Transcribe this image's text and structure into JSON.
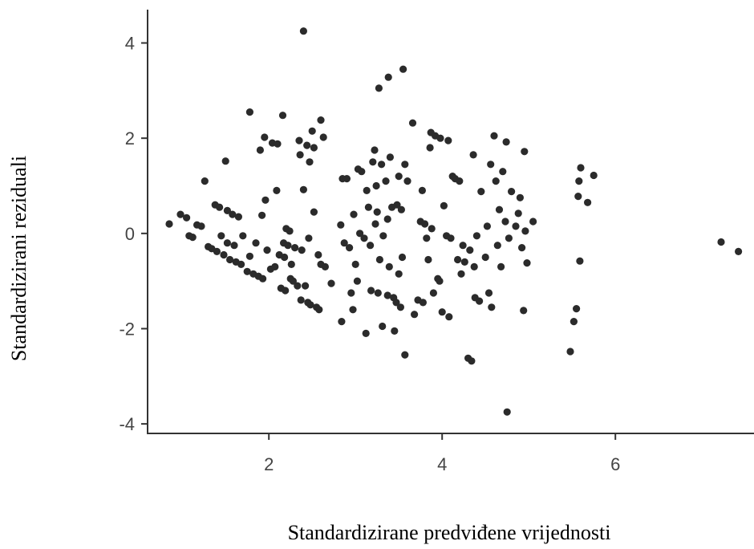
{
  "chart_data": {
    "type": "scatter",
    "xlabel": "Standardizirane predviđene vrijednosti",
    "ylabel": "Standardizirani reziduali",
    "xlim": [
      0.6,
      7.6
    ],
    "ylim": [
      -4.2,
      4.7
    ],
    "xticks": [
      2,
      4,
      6
    ],
    "yticks": [
      -4,
      -2,
      0,
      2,
      4
    ],
    "grid": false,
    "point_color": "#2b2b2b",
    "points": [
      [
        0.85,
        0.2
      ],
      [
        0.98,
        0.4
      ],
      [
        1.05,
        0.33
      ],
      [
        1.08,
        -0.05
      ],
      [
        1.12,
        -0.08
      ],
      [
        1.17,
        0.18
      ],
      [
        1.22,
        0.15
      ],
      [
        1.26,
        1.1
      ],
      [
        1.3,
        -0.28
      ],
      [
        1.34,
        -0.32
      ],
      [
        1.38,
        0.6
      ],
      [
        1.4,
        -0.38
      ],
      [
        1.43,
        0.55
      ],
      [
        1.45,
        -0.05
      ],
      [
        1.48,
        -0.45
      ],
      [
        1.5,
        1.52
      ],
      [
        1.52,
        -0.2
      ],
      [
        1.52,
        0.48
      ],
      [
        1.55,
        -0.55
      ],
      [
        1.58,
        0.4
      ],
      [
        1.6,
        -0.25
      ],
      [
        1.62,
        -0.6
      ],
      [
        1.65,
        0.35
      ],
      [
        1.68,
        -0.65
      ],
      [
        1.7,
        -0.05
      ],
      [
        1.75,
        -0.8
      ],
      [
        1.78,
        2.55
      ],
      [
        1.78,
        -0.48
      ],
      [
        1.82,
        -0.85
      ],
      [
        1.85,
        -0.2
      ],
      [
        1.88,
        -0.9
      ],
      [
        1.9,
        1.75
      ],
      [
        1.92,
        0.38
      ],
      [
        1.93,
        -0.95
      ],
      [
        1.95,
        2.02
      ],
      [
        1.96,
        0.7
      ],
      [
        1.98,
        -0.35
      ],
      [
        2.02,
        -0.75
      ],
      [
        2.04,
        1.9
      ],
      [
        2.07,
        -0.7
      ],
      [
        2.09,
        0.9
      ],
      [
        2.1,
        1.88
      ],
      [
        2.12,
        -0.45
      ],
      [
        2.14,
        -1.15
      ],
      [
        2.16,
        2.48
      ],
      [
        2.17,
        -0.2
      ],
      [
        2.18,
        -0.5
      ],
      [
        2.19,
        -1.2
      ],
      [
        2.2,
        0.1
      ],
      [
        2.22,
        -0.25
      ],
      [
        2.24,
        0.05
      ],
      [
        2.25,
        -0.95
      ],
      [
        2.26,
        -0.65
      ],
      [
        2.28,
        -1.0
      ],
      [
        2.3,
        -0.3
      ],
      [
        2.33,
        -1.1
      ],
      [
        2.35,
        1.95
      ],
      [
        2.36,
        1.65
      ],
      [
        2.37,
        -1.4
      ],
      [
        2.38,
        -0.35
      ],
      [
        2.4,
        4.25
      ],
      [
        2.4,
        0.92
      ],
      [
        2.42,
        -1.1
      ],
      [
        2.44,
        1.85
      ],
      [
        2.45,
        -1.45
      ],
      [
        2.46,
        -0.1
      ],
      [
        2.47,
        1.5
      ],
      [
        2.48,
        -1.5
      ],
      [
        2.5,
        2.15
      ],
      [
        2.52,
        1.8
      ],
      [
        2.52,
        0.45
      ],
      [
        2.55,
        -1.55
      ],
      [
        2.57,
        -0.45
      ],
      [
        2.58,
        -1.6
      ],
      [
        2.6,
        2.38
      ],
      [
        2.6,
        -0.65
      ],
      [
        2.63,
        2.02
      ],
      [
        2.65,
        -0.7
      ],
      [
        2.72,
        -1.05
      ],
      [
        2.83,
        0.18
      ],
      [
        2.84,
        -1.85
      ],
      [
        2.85,
        1.15
      ],
      [
        2.87,
        -0.2
      ],
      [
        2.9,
        1.15
      ],
      [
        2.93,
        -0.3
      ],
      [
        2.95,
        -1.25
      ],
      [
        2.97,
        -1.6
      ],
      [
        2.98,
        0.4
      ],
      [
        3.0,
        -0.65
      ],
      [
        3.02,
        -1.0
      ],
      [
        3.03,
        1.35
      ],
      [
        3.05,
        0.0
      ],
      [
        3.07,
        1.3
      ],
      [
        3.1,
        -0.1
      ],
      [
        3.12,
        -2.1
      ],
      [
        3.13,
        0.9
      ],
      [
        3.15,
        0.55
      ],
      [
        3.17,
        -0.25
      ],
      [
        3.18,
        -1.2
      ],
      [
        3.2,
        1.5
      ],
      [
        3.22,
        1.75
      ],
      [
        3.23,
        0.2
      ],
      [
        3.24,
        1.0
      ],
      [
        3.25,
        0.45
      ],
      [
        3.26,
        -1.25
      ],
      [
        3.27,
        3.05
      ],
      [
        3.28,
        -0.55
      ],
      [
        3.3,
        1.45
      ],
      [
        3.31,
        -1.95
      ],
      [
        3.32,
        -0.05
      ],
      [
        3.35,
        1.1
      ],
      [
        3.37,
        -1.3
      ],
      [
        3.37,
        0.3
      ],
      [
        3.38,
        3.28
      ],
      [
        3.39,
        -0.7
      ],
      [
        3.4,
        1.6
      ],
      [
        3.42,
        0.55
      ],
      [
        3.44,
        -1.35
      ],
      [
        3.45,
        -2.05
      ],
      [
        3.47,
        -1.45
      ],
      [
        3.48,
        0.6
      ],
      [
        3.5,
        1.2
      ],
      [
        3.5,
        -0.85
      ],
      [
        3.52,
        -1.55
      ],
      [
        3.53,
        0.5
      ],
      [
        3.54,
        -0.5
      ],
      [
        3.55,
        3.45
      ],
      [
        3.57,
        1.45
      ],
      [
        3.57,
        -2.55
      ],
      [
        3.6,
        1.1
      ],
      [
        3.66,
        2.32
      ],
      [
        3.68,
        -1.7
      ],
      [
        3.72,
        -1.4
      ],
      [
        3.75,
        0.25
      ],
      [
        3.77,
        0.9
      ],
      [
        3.78,
        -1.45
      ],
      [
        3.8,
        0.2
      ],
      [
        3.82,
        -0.1
      ],
      [
        3.84,
        -0.55
      ],
      [
        3.86,
        1.8
      ],
      [
        3.87,
        2.12
      ],
      [
        3.88,
        0.1
      ],
      [
        3.9,
        -1.25
      ],
      [
        3.92,
        2.05
      ],
      [
        3.95,
        -0.95
      ],
      [
        3.97,
        -1.0
      ],
      [
        3.98,
        2.0
      ],
      [
        4.0,
        -1.65
      ],
      [
        4.02,
        0.58
      ],
      [
        4.05,
        -0.05
      ],
      [
        4.07,
        1.95
      ],
      [
        4.08,
        -1.75
      ],
      [
        4.1,
        -0.1
      ],
      [
        4.12,
        1.2
      ],
      [
        4.15,
        1.15
      ],
      [
        4.18,
        -0.55
      ],
      [
        4.2,
        1.1
      ],
      [
        4.22,
        -0.85
      ],
      [
        4.24,
        -0.25
      ],
      [
        4.26,
        -0.6
      ],
      [
        4.3,
        -2.62
      ],
      [
        4.32,
        -0.35
      ],
      [
        4.34,
        -2.68
      ],
      [
        4.36,
        1.65
      ],
      [
        4.37,
        -0.7
      ],
      [
        4.38,
        -1.35
      ],
      [
        4.4,
        -0.05
      ],
      [
        4.43,
        -1.42
      ],
      [
        4.45,
        0.88
      ],
      [
        4.5,
        -0.5
      ],
      [
        4.52,
        0.15
      ],
      [
        4.54,
        -1.25
      ],
      [
        4.56,
        1.45
      ],
      [
        4.57,
        -1.55
      ],
      [
        4.6,
        2.05
      ],
      [
        4.62,
        1.1
      ],
      [
        4.64,
        -0.25
      ],
      [
        4.66,
        0.5
      ],
      [
        4.68,
        -0.7
      ],
      [
        4.7,
        1.3
      ],
      [
        4.73,
        0.25
      ],
      [
        4.74,
        1.92
      ],
      [
        4.75,
        -3.75
      ],
      [
        4.77,
        -0.1
      ],
      [
        4.8,
        0.88
      ],
      [
        4.85,
        0.15
      ],
      [
        4.88,
        0.42
      ],
      [
        4.9,
        0.75
      ],
      [
        4.92,
        -0.3
      ],
      [
        4.94,
        -1.62
      ],
      [
        4.95,
        1.72
      ],
      [
        4.96,
        0.05
      ],
      [
        4.98,
        -0.62
      ],
      [
        5.05,
        0.25
      ],
      [
        5.48,
        -2.48
      ],
      [
        5.52,
        -1.85
      ],
      [
        5.55,
        -1.58
      ],
      [
        5.57,
        0.78
      ],
      [
        5.58,
        1.1
      ],
      [
        5.59,
        -0.58
      ],
      [
        5.6,
        1.38
      ],
      [
        5.68,
        0.65
      ],
      [
        5.75,
        1.22
      ],
      [
        7.22,
        -0.18
      ],
      [
        7.42,
        -0.38
      ]
    ]
  }
}
